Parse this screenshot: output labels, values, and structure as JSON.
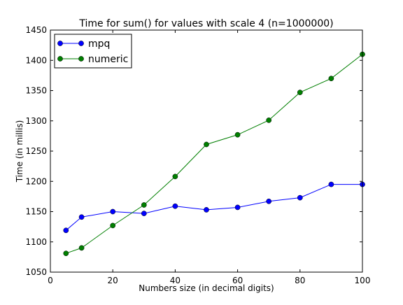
{
  "chart_data": {
    "type": "line",
    "title": "Time for sum() for values with scale 4 (n=1000000)",
    "xlabel": "Numbers size (in decimal digits)",
    "ylabel": "Time (in millis)",
    "xlim": [
      0,
      100
    ],
    "ylim": [
      1050,
      1450
    ],
    "xticks": [
      0,
      20,
      40,
      60,
      80,
      100
    ],
    "yticks": [
      1050,
      1100,
      1150,
      1200,
      1250,
      1300,
      1350,
      1400,
      1450
    ],
    "grid": false,
    "legend_position": "top-left",
    "x": [
      5,
      10,
      20,
      30,
      40,
      50,
      60,
      70,
      80,
      90,
      100
    ],
    "series": [
      {
        "name": "mpq",
        "color": "#0000ff",
        "marker": "circle",
        "values": [
          1119,
          1141,
          1150,
          1147,
          1159,
          1153,
          1157,
          1167,
          1173,
          1195,
          1195
        ]
      },
      {
        "name": "numeric",
        "color": "#007f00",
        "marker": "circle",
        "values": [
          1081,
          1090,
          1127,
          1161,
          1208,
          1261,
          1277,
          1301,
          1347,
          1370,
          1410
        ]
      }
    ]
  }
}
